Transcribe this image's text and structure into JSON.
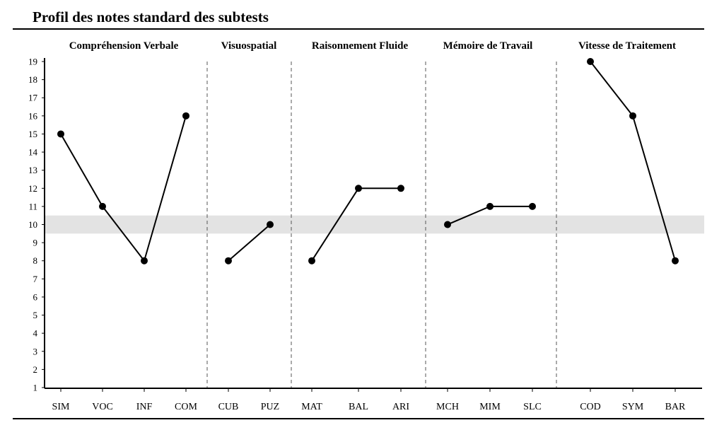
{
  "chart_data": {
    "type": "line",
    "title": "Profil des notes standard des subtests",
    "ylim": [
      1,
      19
    ],
    "yticks": [
      1,
      2,
      3,
      4,
      5,
      6,
      7,
      8,
      9,
      10,
      11,
      12,
      13,
      14,
      15,
      16,
      17,
      18,
      19
    ],
    "reference_band": [
      9.5,
      10.5
    ],
    "grid": false,
    "groups": [
      {
        "name": "Compréhension Verbale",
        "categories": [
          "SIM",
          "VOC",
          "INF",
          "COM"
        ],
        "values": [
          15,
          11,
          8,
          16
        ]
      },
      {
        "name": "Visuospatial",
        "categories": [
          "CUB",
          "PUZ"
        ],
        "values": [
          8,
          10
        ]
      },
      {
        "name": "Raisonnement Fluide",
        "categories": [
          "MAT",
          "BAL",
          "ARI"
        ],
        "values": [
          8,
          12,
          12
        ]
      },
      {
        "name": "Mémoire de Travail",
        "categories": [
          "MCH",
          "MIM",
          "SLC"
        ],
        "values": [
          10,
          11,
          11
        ]
      },
      {
        "name": "Vitesse de Traitement",
        "categories": [
          "COD",
          "SYM",
          "BAR"
        ],
        "values": [
          19,
          16,
          8
        ]
      }
    ],
    "colors": {
      "line": "#000000",
      "band": "#e3e3e3",
      "separator": "#555555"
    }
  }
}
